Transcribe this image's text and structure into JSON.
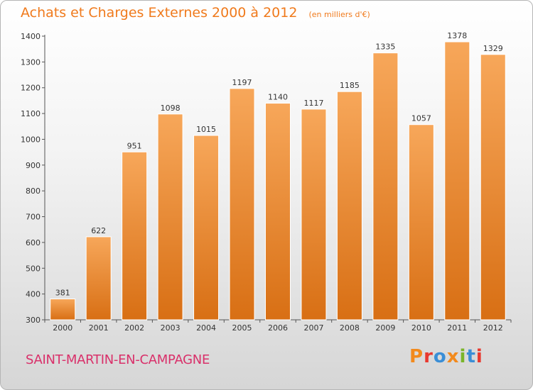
{
  "header": {
    "title": "Achats et Charges Externes 2000 à 2012",
    "subtitle": "(en milliers d'€)"
  },
  "footer": {
    "city": "SAINT-MARTIN-EN-CAMPAGNE",
    "logo": "Proxiti",
    "logo_colors": [
      "#f28a1d",
      "#e8392f",
      "#3a8ed6",
      "#f28a1d",
      "#7ab52a",
      "#3a8ed6",
      "#e8392f"
    ]
  },
  "colors": {
    "bar_top": "#f7a75a",
    "bar_bottom": "#d86f14",
    "accent": "#f07a1c"
  },
  "chart_data": {
    "type": "bar",
    "categories": [
      "2000",
      "2001",
      "2002",
      "2003",
      "2004",
      "2005",
      "2006",
      "2007",
      "2008",
      "2009",
      "2010",
      "2011",
      "2012"
    ],
    "values": [
      381,
      622,
      951,
      1098,
      1015,
      1197,
      1140,
      1117,
      1185,
      1335,
      1057,
      1378,
      1329
    ],
    "title": "Achats et Charges Externes 2000 à 2012",
    "subtitle": "(en milliers d'€)",
    "xlabel": "",
    "ylabel": "",
    "ylim": [
      300,
      1400
    ],
    "yticks": [
      300,
      400,
      500,
      600,
      700,
      800,
      900,
      1000,
      1100,
      1200,
      1300,
      1400
    ],
    "grid": false,
    "data_labels": true
  }
}
